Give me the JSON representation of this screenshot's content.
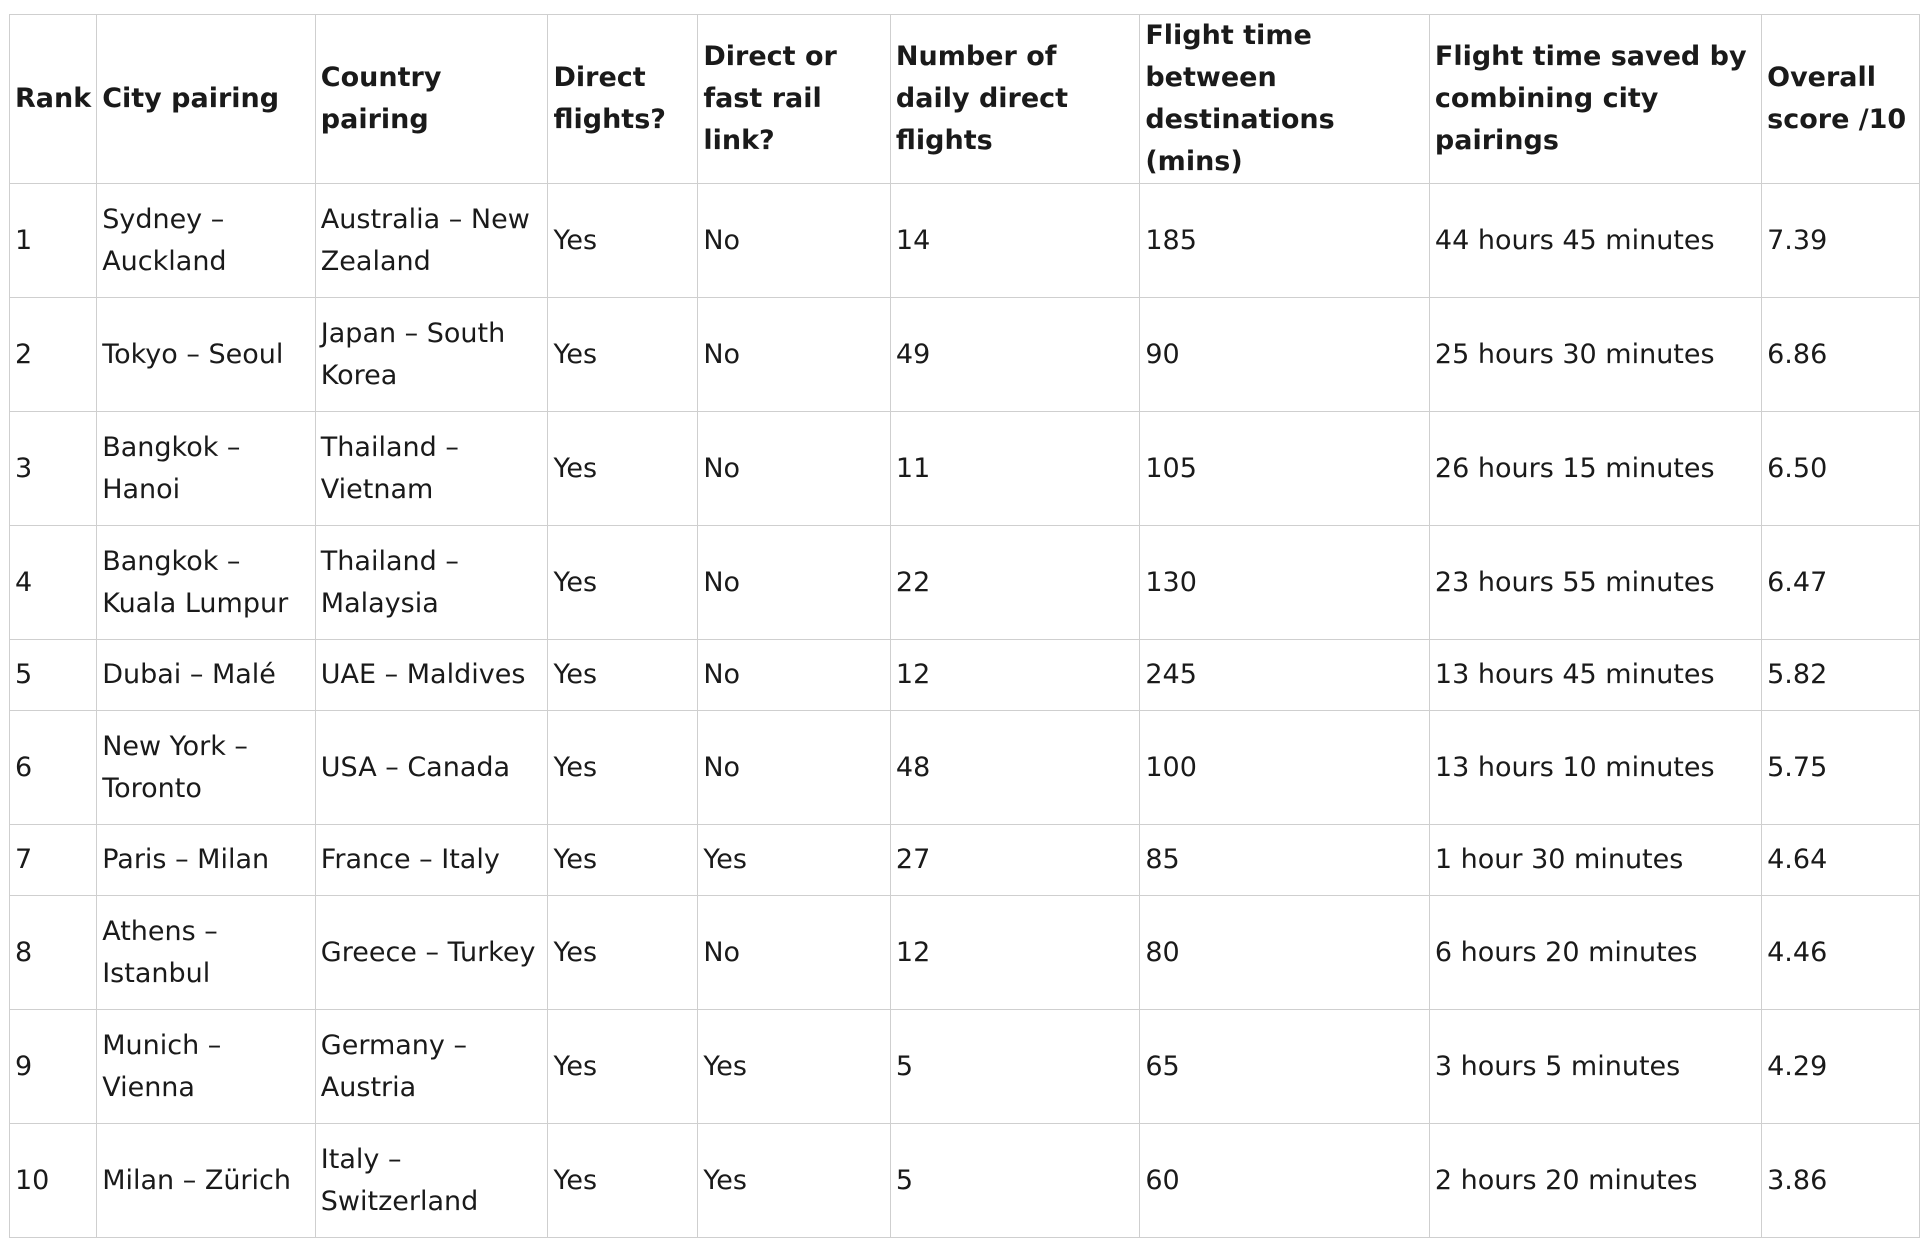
{
  "table": {
    "headers": [
      "Rank",
      "City pairing",
      "Country pairing",
      "Direct flights?",
      "Direct or fast rail link?",
      "Number of daily direct flights",
      "Flight time between destinations (mins)",
      "Flight time saved by combining city pairings",
      "Overall score /10"
    ],
    "rows": [
      [
        "1",
        "Sydney – Auckland",
        "Australia – New Zealand",
        "Yes",
        "No",
        "14",
        "185",
        "44 hours 45 minutes",
        "7.39"
      ],
      [
        "2",
        "Tokyo – Seoul",
        "Japan – South Korea",
        "Yes",
        "No",
        "49",
        "90",
        "25 hours 30 minutes",
        "6.86"
      ],
      [
        "3",
        "Bangkok – Hanoi",
        "Thailand – Vietnam",
        "Yes",
        "No",
        "11",
        "105",
        "26 hours 15 minutes",
        "6.50"
      ],
      [
        "4",
        "Bangkok – Kuala Lumpur",
        "Thailand – Malaysia",
        "Yes",
        "No",
        "22",
        "130",
        "23 hours 55 minutes",
        "6.47"
      ],
      [
        "5",
        "Dubai – Malé",
        "UAE – Maldives",
        "Yes",
        "No",
        "12",
        "245",
        "13 hours 45 minutes",
        "5.82"
      ],
      [
        "6",
        "New York – Toronto",
        "USA – Canada",
        "Yes",
        "No",
        "48",
        "100",
        "13 hours 10 minutes",
        "5.75"
      ],
      [
        "7",
        "Paris – Milan",
        "France – Italy",
        "Yes",
        "Yes",
        "27",
        "85",
        "1 hour 30 minutes",
        "4.64"
      ],
      [
        "8",
        "Athens – Istanbul",
        "Greece – Turkey",
        "Yes",
        "No",
        "12",
        "80",
        "6 hours 20 minutes",
        "4.46"
      ],
      [
        "9",
        "Munich – Vienna",
        "Germany – Austria",
        "Yes",
        "Yes",
        "5",
        "65",
        "3 hours 5 minutes",
        "4.29"
      ],
      [
        "10",
        "Milan – Zürich",
        "Italy – Switzerland",
        "Yes",
        "Yes",
        "5",
        "60",
        "2 hours 20 minutes",
        "3.86"
      ]
    ]
  }
}
